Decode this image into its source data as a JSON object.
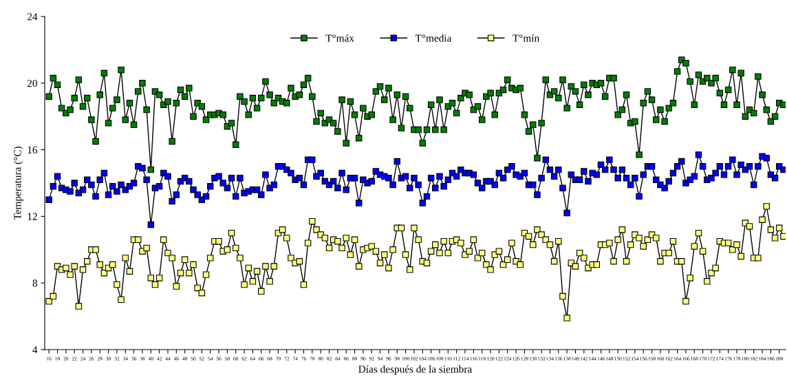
{
  "chart_data": {
    "type": "line",
    "xlabel": "Días después de la siembra",
    "ylabel": "Temperatura (°C)",
    "x": [
      16,
      17,
      18,
      19,
      20,
      21,
      22,
      23,
      24,
      25,
      26,
      27,
      28,
      29,
      30,
      31,
      32,
      33,
      34,
      35,
      36,
      37,
      38,
      39,
      40,
      41,
      42,
      43,
      44,
      45,
      46,
      47,
      48,
      49,
      50,
      51,
      52,
      53,
      54,
      55,
      56,
      57,
      58,
      59,
      60,
      61,
      62,
      63,
      64,
      65,
      66,
      67,
      68,
      69,
      70,
      71,
      72,
      73,
      74,
      75,
      76,
      77,
      78,
      79,
      80,
      81,
      82,
      83,
      84,
      85,
      86,
      87,
      88,
      89,
      90,
      91,
      92,
      93,
      94,
      95,
      96,
      97,
      98,
      99,
      100,
      101,
      102,
      103,
      104,
      105,
      106,
      107,
      108,
      109,
      110,
      111,
      112,
      113,
      114,
      115,
      116,
      117,
      118,
      119,
      120,
      121,
      122,
      123,
      124,
      125,
      126,
      127,
      128,
      129,
      130,
      131,
      132,
      133,
      134,
      135,
      136,
      137,
      138,
      139,
      140,
      141,
      142,
      143,
      144,
      145,
      146,
      147,
      148,
      149,
      150,
      151,
      152,
      153,
      154,
      155,
      156,
      157,
      158,
      159,
      160,
      161,
      162,
      163,
      164,
      165,
      166,
      167,
      168,
      169,
      170,
      171,
      172,
      173,
      174,
      175,
      176,
      177,
      178,
      179,
      180,
      181,
      182,
      183,
      184,
      185,
      186,
      187,
      188,
      189
    ],
    "series": [
      {
        "name": "T°máx",
        "color": "#008000",
        "values": [
          19.2,
          20.3,
          19.9,
          18.5,
          18.2,
          18.4,
          19.1,
          20.2,
          18.6,
          19.1,
          17.8,
          16.5,
          19.3,
          20.6,
          17.6,
          18.5,
          19.0,
          20.8,
          17.8,
          18.8,
          17.5,
          19.5,
          20.0,
          18.4,
          14.8,
          19.5,
          19.3,
          18.7,
          18.9,
          16.5,
          18.8,
          19.6,
          19.2,
          19.7,
          18.0,
          18.8,
          18.6,
          17.8,
          18.1,
          18.1,
          18.2,
          18.1,
          17.4,
          17.6,
          16.3,
          19.2,
          18.9,
          18.1,
          19.1,
          18.5,
          19.1,
          20.1,
          19.3,
          18.8,
          19.1,
          18.9,
          18.8,
          19.7,
          19.2,
          19.3,
          19.9,
          20.3,
          19.2,
          17.7,
          18.2,
          17.6,
          17.8,
          17.6,
          17.1,
          19.0,
          16.4,
          18.9,
          18.1,
          16.7,
          18.5,
          18.0,
          18.1,
          19.5,
          19.8,
          19.0,
          19.7,
          17.8,
          19.3,
          17.3,
          19.2,
          18.5,
          17.2,
          17.2,
          16.4,
          17.2,
          18.7,
          17.2,
          19.0,
          17.2,
          18.6,
          18.8,
          18.2,
          19.1,
          19.4,
          19.3,
          18.4,
          18.6,
          17.8,
          19.2,
          19.4,
          18.1,
          19.4,
          19.6,
          20.2,
          19.7,
          19.6,
          19.7,
          18.1,
          17.1,
          17.5,
          15.5,
          17.6,
          20.2,
          19.3,
          19.5,
          19.1,
          20.2,
          18.5,
          19.8,
          19.5,
          18.7,
          19.9,
          19.3,
          20.0,
          19.9,
          20.0,
          19.2,
          20.3,
          20.3,
          18.1,
          18.4,
          19.3,
          17.6,
          17.7,
          15.7,
          18.8,
          19.5,
          19.0,
          17.8,
          18.4,
          17.7,
          18.5,
          18.8,
          20.7,
          21.4,
          21.2,
          20.1,
          18.7,
          20.5,
          20.1,
          20.3,
          20.0,
          20.3,
          19.4,
          18.7,
          19.6,
          20.8,
          18.7,
          20.6,
          18.0,
          18.4,
          18.2,
          20.4,
          19.3,
          18.4,
          17.7,
          18.0,
          18.8,
          18.7
        ]
      },
      {
        "name": "T°media",
        "color": "#0000ff",
        "values": [
          13.0,
          13.8,
          14.4,
          13.7,
          13.6,
          13.5,
          14.0,
          13.4,
          13.6,
          14.2,
          13.9,
          13.2,
          14.2,
          14.6,
          13.3,
          13.8,
          13.5,
          13.9,
          13.6,
          13.8,
          14.0,
          15.0,
          14.9,
          14.2,
          11.5,
          13.7,
          13.8,
          14.6,
          14.4,
          12.9,
          13.3,
          14.1,
          14.3,
          14.1,
          13.6,
          13.3,
          13.0,
          13.2,
          13.8,
          14.3,
          14.4,
          14.0,
          13.7,
          14.3,
          13.2,
          14.3,
          13.4,
          13.5,
          13.6,
          13.6,
          13.3,
          14.5,
          13.7,
          13.9,
          15.0,
          15.0,
          14.8,
          14.6,
          14.2,
          14.3,
          13.9,
          15.4,
          15.4,
          14.4,
          14.6,
          14.1,
          13.9,
          14.1,
          13.7,
          14.6,
          13.6,
          14.3,
          14.3,
          12.8,
          14.2,
          14.0,
          14.1,
          14.7,
          14.5,
          14.4,
          14.3,
          13.9,
          15.3,
          14.3,
          14.4,
          13.7,
          14.3,
          13.9,
          12.8,
          13.2,
          14.3,
          13.7,
          14.4,
          13.8,
          14.2,
          14.6,
          14.4,
          14.8,
          14.6,
          14.6,
          14.5,
          14.0,
          13.7,
          14.1,
          14.1,
          13.9,
          14.6,
          14.3,
          14.8,
          15.0,
          14.5,
          14.4,
          14.6,
          13.9,
          13.9,
          13.3,
          14.3,
          15.4,
          14.8,
          14.4,
          14.8,
          13.7,
          12.2,
          14.5,
          14.2,
          14.2,
          14.7,
          14.1,
          14.6,
          14.5,
          15.1,
          14.8,
          15.4,
          14.8,
          14.3,
          14.8,
          14.3,
          13.9,
          14.3,
          13.2,
          14.5,
          15.0,
          15.0,
          14.2,
          13.9,
          13.7,
          14.1,
          14.6,
          15.0,
          15.3,
          14.0,
          14.2,
          14.4,
          15.7,
          15.0,
          14.2,
          14.3,
          14.6,
          15.0,
          14.5,
          15.0,
          15.4,
          14.5,
          15.1,
          14.8,
          15.0,
          13.9,
          15.0,
          15.6,
          15.5,
          14.5,
          14.3,
          15.0,
          14.8
        ]
      },
      {
        "name": "T°mín",
        "color": "#ffff80",
        "values": [
          6.9,
          7.2,
          9.0,
          8.8,
          8.9,
          8.5,
          9.0,
          6.6,
          8.8,
          9.3,
          10.0,
          10.0,
          9.1,
          8.6,
          8.9,
          9.1,
          7.9,
          7.0,
          9.5,
          8.7,
          10.6,
          10.6,
          9.9,
          10.1,
          8.3,
          7.9,
          8.3,
          10.6,
          9.8,
          9.5,
          7.8,
          8.6,
          9.4,
          8.6,
          9.1,
          7.7,
          7.4,
          8.5,
          9.5,
          10.5,
          10.5,
          9.9,
          10.0,
          11.0,
          10.1,
          9.5,
          7.9,
          8.9,
          8.1,
          8.7,
          7.5,
          9.0,
          8.1,
          9.0,
          11.0,
          11.2,
          10.7,
          9.5,
          9.2,
          9.3,
          7.9,
          10.4,
          11.7,
          11.2,
          10.9,
          10.7,
          10.1,
          10.6,
          10.5,
          10.1,
          10.7,
          9.7,
          10.6,
          9.0,
          10.0,
          10.1,
          10.2,
          9.9,
          9.2,
          9.7,
          8.9,
          10.0,
          11.3,
          11.3,
          9.7,
          8.8,
          11.3,
          10.6,
          9.3,
          9.2,
          9.9,
          10.3,
          9.8,
          10.5,
          9.8,
          10.5,
          10.6,
          10.4,
          9.7,
          9.9,
          10.6,
          9.5,
          9.8,
          9.1,
          8.8,
          9.7,
          9.9,
          9.1,
          9.4,
          10.4,
          9.3,
          9.1,
          11.0,
          10.8,
          10.3,
          11.2,
          10.9,
          10.6,
          10.3,
          9.3,
          10.5,
          7.2,
          5.9,
          9.2,
          9.0,
          9.8,
          9.5,
          8.9,
          9.1,
          9.1,
          10.3,
          10.3,
          10.4,
          9.3,
          10.6,
          11.2,
          9.3,
          10.3,
          10.9,
          10.7,
          10.2,
          10.6,
          10.9,
          10.7,
          9.3,
          9.8,
          9.8,
          10.5,
          9.3,
          9.3,
          6.9,
          8.3,
          10.2,
          11.0,
          9.9,
          8.1,
          8.6,
          8.9,
          10.5,
          10.4,
          10.4,
          10.0,
          10.3,
          9.6,
          11.6,
          11.4,
          9.5,
          9.5,
          11.8,
          12.6,
          11.2,
          10.7,
          11.3,
          10.8
        ]
      }
    ],
    "xlim": [
      15,
      189.5
    ],
    "xticks": [
      16,
      18,
      20,
      22,
      24,
      26,
      28,
      30,
      32,
      34,
      36,
      38,
      40,
      42,
      44,
      46,
      48,
      50,
      52,
      54,
      56,
      58,
      60,
      62,
      64,
      66,
      68,
      70,
      72,
      74,
      76,
      78,
      80,
      82,
      84,
      86,
      88,
      90,
      92,
      94,
      96,
      98,
      100,
      102,
      104,
      106,
      108,
      110,
      112,
      114,
      116,
      118,
      120,
      122,
      124,
      126,
      128,
      130,
      132,
      134,
      136,
      138,
      140,
      142,
      144,
      146,
      148,
      150,
      152,
      154,
      156,
      158,
      160,
      162,
      164,
      166,
      168,
      170,
      172,
      174,
      176,
      178,
      180,
      182,
      184,
      186,
      188
    ],
    "ylim": [
      4,
      24
    ],
    "yticks": [
      4,
      8,
      12,
      16,
      20,
      24
    ],
    "grid": false,
    "legend": "top",
    "marker": "square",
    "line_style": "solid"
  }
}
